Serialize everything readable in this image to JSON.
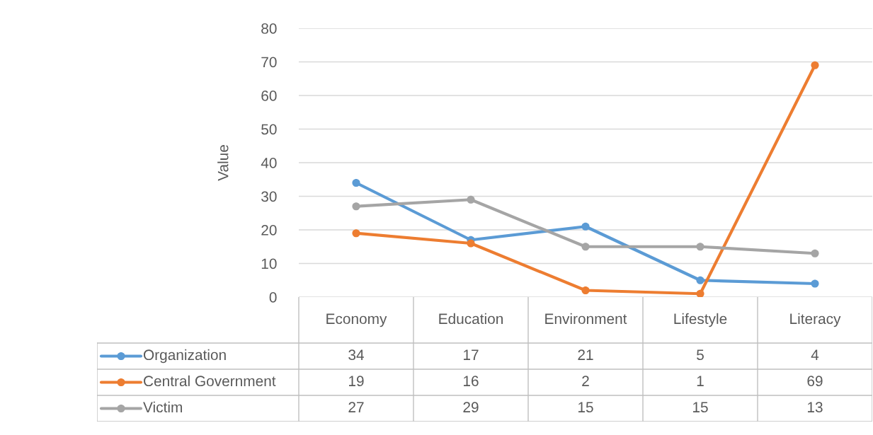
{
  "chart_data": {
    "type": "line",
    "ylabel": "Value",
    "categories": [
      "Economy",
      "Education",
      "Environment",
      "Lifestyle",
      "Literacy"
    ],
    "series": [
      {
        "name": "Organization",
        "color": "#5b9bd5",
        "values": [
          34,
          17,
          21,
          5,
          4
        ]
      },
      {
        "name": "Central Government",
        "color": "#ed7d31",
        "values": [
          19,
          16,
          2,
          1,
          69
        ]
      },
      {
        "name": "Victim",
        "color": "#a5a5a5",
        "values": [
          27,
          29,
          15,
          15,
          13
        ]
      }
    ],
    "ylim": [
      0,
      80
    ],
    "yticks": [
      0,
      10,
      20,
      30,
      40,
      50,
      60,
      70,
      80
    ],
    "grid": "y",
    "marker": "circle",
    "line_style": "solid",
    "legend": "bottom",
    "data_labels": true
  }
}
